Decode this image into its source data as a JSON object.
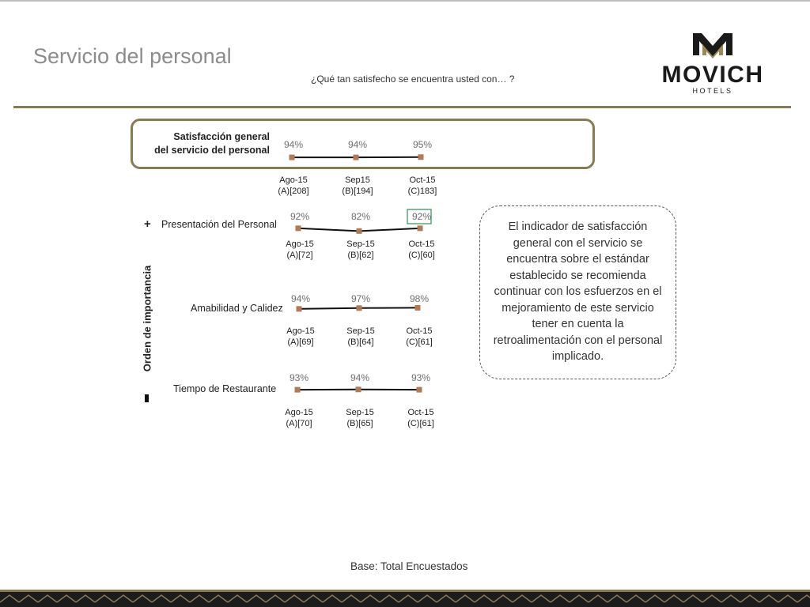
{
  "header": {
    "title": "Servicio del personal",
    "question": "¿Qué tan satisfecho se encuentra usted con… ?"
  },
  "logo": {
    "brand": "MOVICH",
    "sub": "HOTELS"
  },
  "axis_title": "Orden de importancia",
  "axis_plus": "+",
  "axis_minus": "-",
  "callout_text": "El indicador de satisfacción general con el servicio se encuentra sobre el estándar establecido se recomienda continuar con los esfuerzos en el mejoramiento de este servicio tener en cuenta la retroalimentación con el personal implicado.",
  "base": "Base: Total Encuestados",
  "colors": {
    "gold": "#8a7a52",
    "marker": "#b07a57",
    "highlight": "#2e8b57"
  },
  "chart_data": [
    {
      "type": "line",
      "title": "Satisfacción general del servicio del personal",
      "title_lines": [
        "Satisfacción general",
        "del servicio del personal"
      ],
      "categories": [
        [
          "Ago-15",
          "(A)[208]"
        ],
        [
          "Sep15",
          "(B)[194]"
        ],
        [
          "Oct-15",
          "(C)183]"
        ]
      ],
      "values": [
        94,
        94,
        95
      ],
      "labels": [
        "94%",
        "94%",
        "95%"
      ],
      "unit": "%"
    },
    {
      "type": "line",
      "title": "Presentación del Personal",
      "categories": [
        [
          "Ago-15",
          "(A)[72]"
        ],
        [
          "Sep-15",
          "(B)[62]"
        ],
        [
          "Oct-15",
          "(C)[60]"
        ]
      ],
      "values": [
        92,
        82,
        92
      ],
      "labels": [
        "92%",
        "82%",
        "92%"
      ],
      "highlighted_index": 2,
      "unit": "%"
    },
    {
      "type": "line",
      "title": "Amabilidad y Calidez",
      "categories": [
        [
          "Ago-15",
          "(A)[69]"
        ],
        [
          "Sep-15",
          "(B)[64]"
        ],
        [
          "Oct-15",
          "(C)[61]"
        ]
      ],
      "values": [
        94,
        97,
        98
      ],
      "labels": [
        "94%",
        "97%",
        "98%"
      ],
      "unit": "%"
    },
    {
      "type": "line",
      "title": "Tiempo de Restaurante",
      "categories": [
        [
          "Ago-15",
          "(A)[70]"
        ],
        [
          "Sep-15",
          "(B)[65]"
        ],
        [
          "Oct-15",
          "(C)[61]"
        ]
      ],
      "values": [
        93,
        94,
        93
      ],
      "labels": [
        "93%",
        "94%",
        "93%"
      ],
      "unit": "%"
    }
  ]
}
